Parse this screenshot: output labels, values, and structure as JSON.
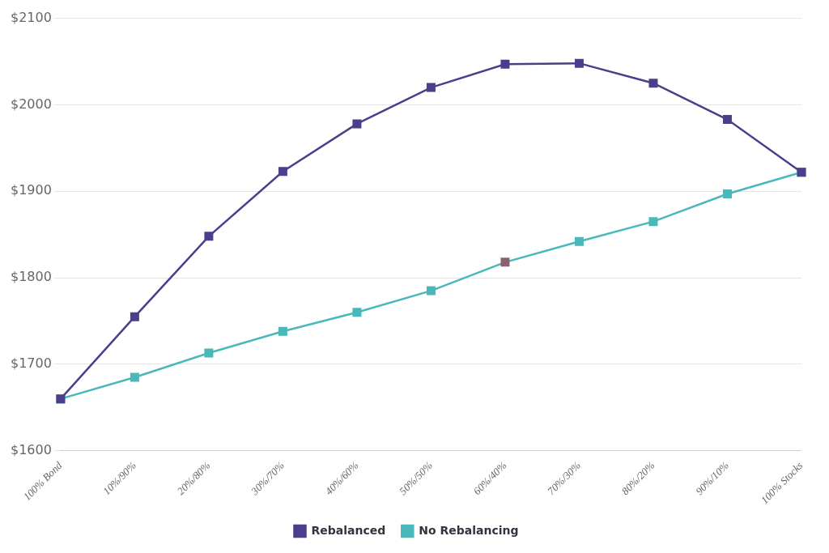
{
  "chart_data": {
    "type": "line",
    "categories": [
      "100% Bond",
      "10%/90%",
      "20%/80%",
      "30%/70%",
      "40%/60%",
      "50%/50%",
      "60%/40%",
      "70%/30%",
      "80%/20%",
      "90%/10%",
      "100% Stocks"
    ],
    "series": [
      {
        "name": "Rebalanced",
        "color": "#4a3f8c",
        "marker": "square",
        "line_style": "solid",
        "values": [
          1660,
          1755,
          1848,
          1923,
          1978,
          2020,
          2047,
          2048,
          2025,
          1983,
          1922
        ]
      },
      {
        "name": "No Rebalancing",
        "color": "#4ab8b8",
        "marker": "square",
        "line_style": "solid",
        "colors": [
          "#4ab8b8",
          "#4ab8b8",
          "#4ab8b8",
          "#4ab8b8",
          "#4ab8b8",
          "#4ab8b8",
          "#8b6070",
          "#4ab8b8",
          "#4ab8b8",
          "#4ab8b8",
          "#4ab8b8"
        ],
        "values": [
          1660,
          1685,
          1713,
          1738,
          1760,
          1785,
          1818,
          1842,
          1865,
          1897,
          1922
        ]
      }
    ],
    "ylim": [
      1600,
      2100
    ],
    "yticks": [
      {
        "value": 1600,
        "label": "$1600"
      },
      {
        "value": 1700,
        "label": "$1700"
      },
      {
        "value": 1800,
        "label": "$1800"
      },
      {
        "value": 1900,
        "label": "$1900"
      },
      {
        "value": 2000,
        "label": "$2000"
      },
      {
        "value": 2100,
        "label": "$2100"
      }
    ],
    "grid": true,
    "legend": "bottom"
  }
}
